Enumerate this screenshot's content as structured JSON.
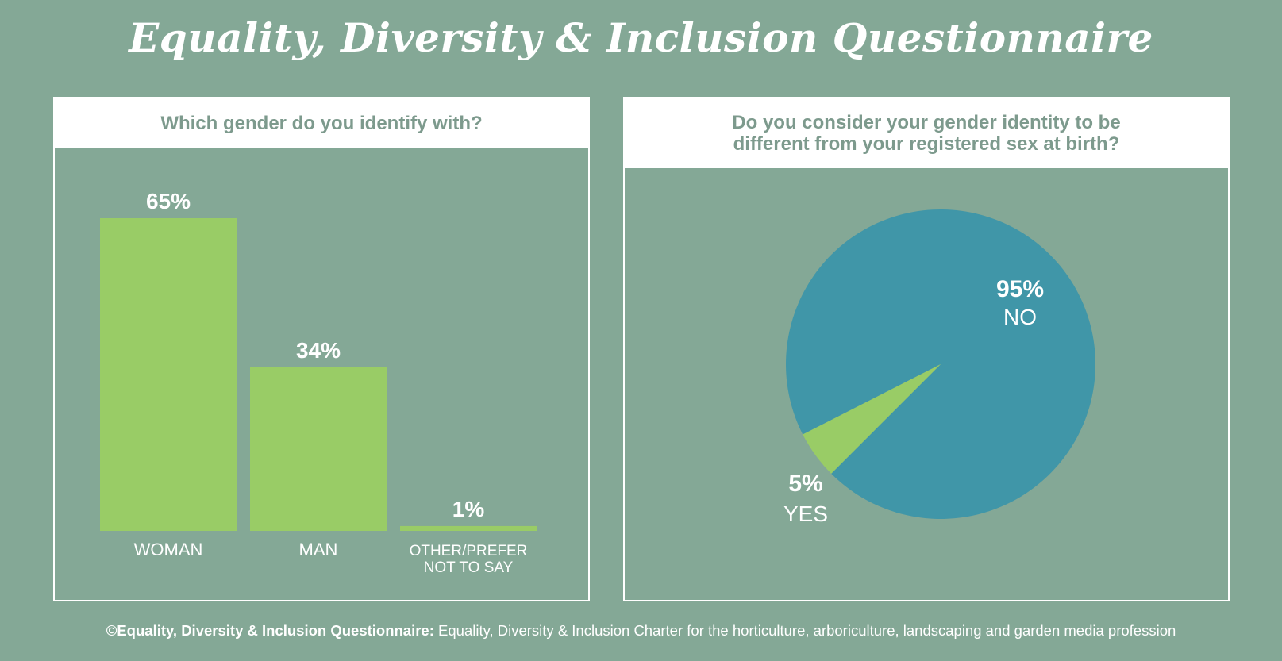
{
  "title": "Equality, Diversity & Inclusion Questionnaire",
  "colors": {
    "background": "#84a896",
    "bar": "#99cc66",
    "pie_no": "#4096a8",
    "pie_yes": "#99cc66",
    "heading_text": "#7d9a8d"
  },
  "chart_data": [
    {
      "type": "bar",
      "title": "Which gender do you identify with?",
      "categories": [
        "WOMAN",
        "MAN",
        "OTHER/PREFER NOT TO SAY"
      ],
      "values": [
        65,
        34,
        1
      ],
      "value_labels": [
        "65%",
        "34%",
        "1%"
      ],
      "ylim": [
        0,
        65
      ],
      "grid": false
    },
    {
      "type": "pie",
      "title": "Do you consider your gender identity to be different from your registered sex at birth?",
      "categories": [
        "NO",
        "YES"
      ],
      "values": [
        95,
        5
      ],
      "value_labels": [
        "95%",
        "5%"
      ]
    }
  ],
  "footer": {
    "bold": "©Equality, Diversity & Inclusion Questionnaire:",
    "text": " Equality, Diversity & Inclusion Charter for the horticulture, arboriculture, landscaping and garden media profession"
  }
}
